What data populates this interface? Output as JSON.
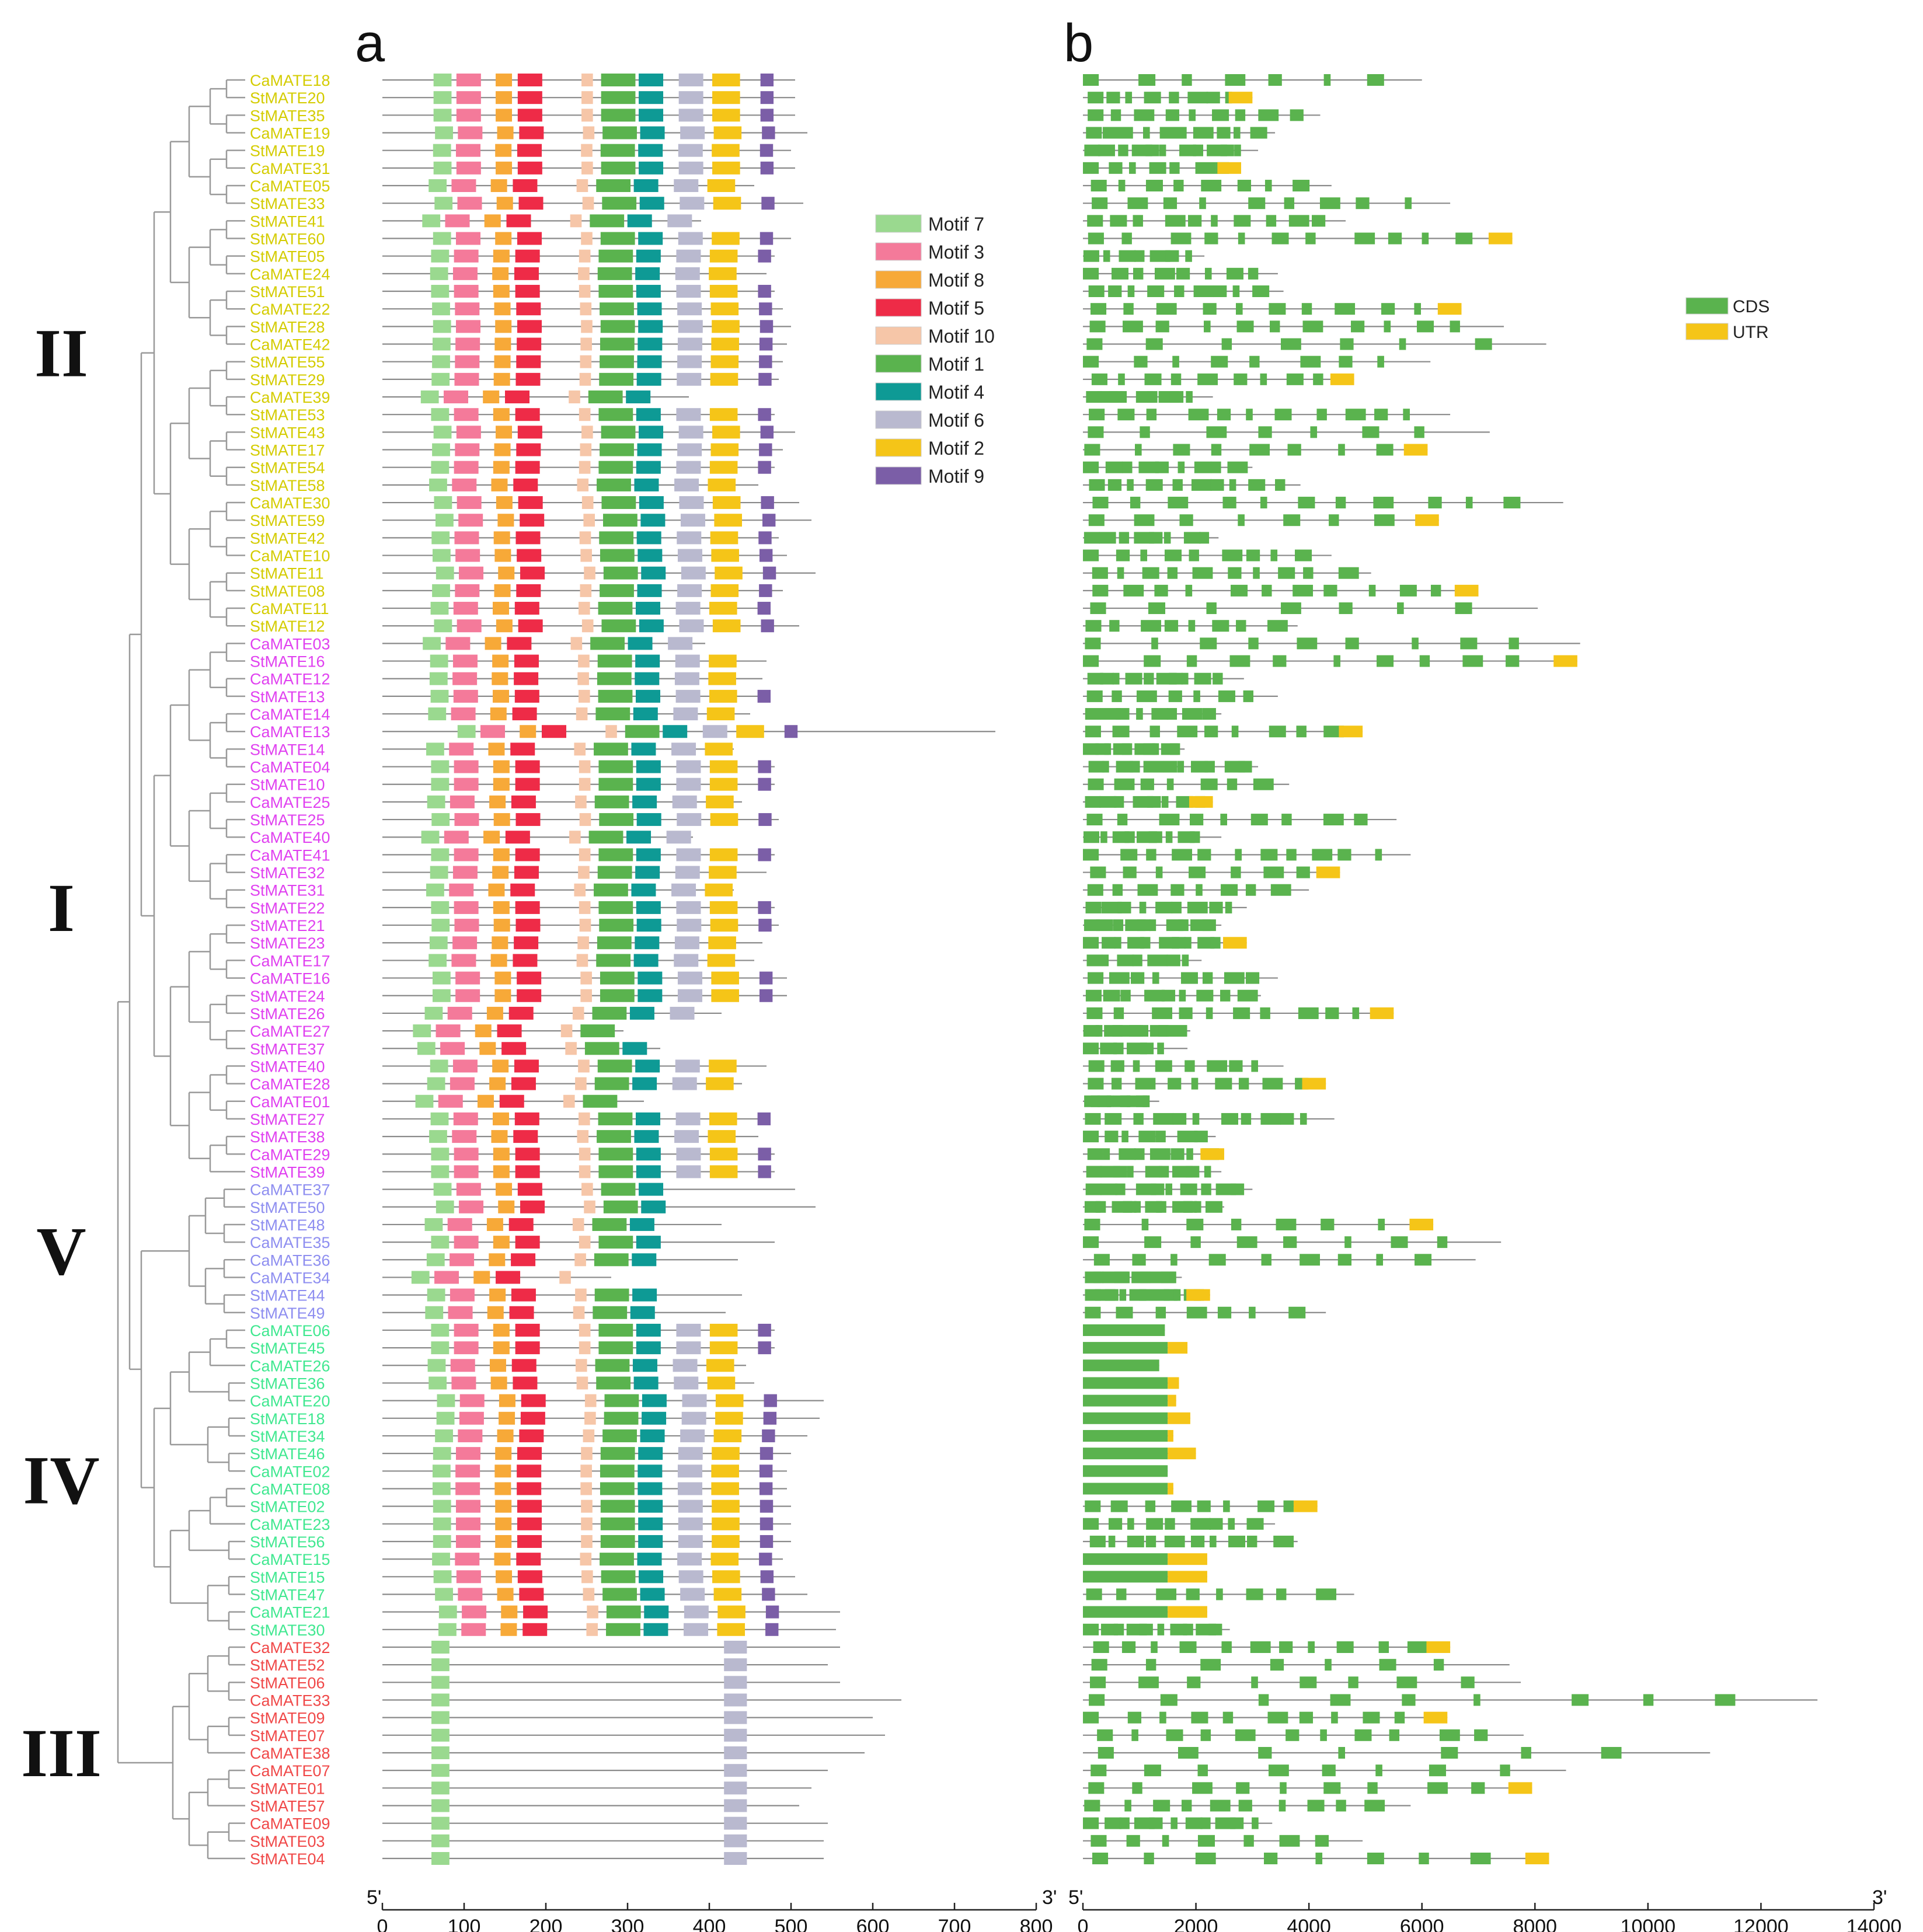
{
  "panels": {
    "a": "a",
    "b": "b"
  },
  "ends": {
    "five": "5'",
    "three": "3'"
  },
  "clades": [
    {
      "id": "II",
      "color": "#d4cc00"
    },
    {
      "id": "I",
      "color": "#e040f0"
    },
    {
      "id": "V",
      "color": "#8e8ef0"
    },
    {
      "id": "IV",
      "color": "#40e890"
    },
    {
      "id": "III",
      "color": "#f04848"
    }
  ],
  "motif_legend": [
    {
      "name": "Motif 7",
      "color": "#9ad98f"
    },
    {
      "name": "Motif 3",
      "color": "#f47a9a"
    },
    {
      "name": "Motif 8",
      "color": "#f7a938"
    },
    {
      "name": "Motif 5",
      "color": "#ee2b47"
    },
    {
      "name": "Motif 10",
      "color": "#f6c6a8"
    },
    {
      "name": "Motif 1",
      "color": "#5ab34e"
    },
    {
      "name": "Motif 4",
      "color": "#0e9a95"
    },
    {
      "name": "Motif 6",
      "color": "#b9b9cf"
    },
    {
      "name": "Motif 2",
      "color": "#f5c518"
    },
    {
      "name": "Motif 9",
      "color": "#7b5ea7"
    }
  ],
  "structure_legend": [
    {
      "name": "CDS",
      "color": "#5ab34e"
    },
    {
      "name": "UTR",
      "color": "#f5c518"
    }
  ],
  "motif_axis": {
    "ticks": [
      "0",
      "100",
      "200",
      "300",
      "400",
      "500",
      "600",
      "700",
      "800"
    ],
    "max": 800
  },
  "structure_axis": {
    "ticks": [
      "0",
      "2000",
      "4000",
      "6000",
      "8000",
      "10000",
      "12000",
      "14000"
    ],
    "max": 14000
  },
  "genes": [
    {
      "name": "CaMATE18",
      "clade": "II",
      "len": 505,
      "gene": 6000
    },
    {
      "name": "StMATE20",
      "clade": "II",
      "len": 505,
      "gene": 3000
    },
    {
      "name": "StMATE35",
      "clade": "II",
      "len": 505,
      "gene": 4200
    },
    {
      "name": "CaMATE19",
      "clade": "II",
      "len": 520,
      "gene": 3400
    },
    {
      "name": "StMATE19",
      "clade": "II",
      "len": 500,
      "gene": 3100
    },
    {
      "name": "CaMATE31",
      "clade": "II",
      "len": 505,
      "gene": 2800
    },
    {
      "name": "CaMATE05",
      "clade": "II",
      "len": 455,
      "gene": 4400
    },
    {
      "name": "StMATE33",
      "clade": "II",
      "len": 515,
      "gene": 6500
    },
    {
      "name": "StMATE41",
      "clade": "II",
      "len": 390,
      "gene": 4650
    },
    {
      "name": "StMATE60",
      "clade": "II",
      "len": 500,
      "gene": 7600
    },
    {
      "name": "StMATE05",
      "clade": "II",
      "len": 480,
      "gene": 2150
    },
    {
      "name": "CaMATE24",
      "clade": "II",
      "len": 470,
      "gene": 3450
    },
    {
      "name": "StMATE51",
      "clade": "II",
      "len": 480,
      "gene": 3550
    },
    {
      "name": "CaMATE22",
      "clade": "II",
      "len": 490,
      "gene": 6700
    },
    {
      "name": "StMATE28",
      "clade": "II",
      "len": 500,
      "gene": 7450
    },
    {
      "name": "CaMATE42",
      "clade": "II",
      "len": 495,
      "gene": 8200
    },
    {
      "name": "StMATE55",
      "clade": "II",
      "len": 490,
      "gene": 6150
    },
    {
      "name": "StMATE29",
      "clade": "II",
      "len": 485,
      "gene": 4800
    },
    {
      "name": "CaMATE39",
      "clade": "II",
      "len": 375,
      "gene": 2300
    },
    {
      "name": "StMATE53",
      "clade": "II",
      "len": 480,
      "gene": 6500
    },
    {
      "name": "StMATE43",
      "clade": "II",
      "len": 505,
      "gene": 7200
    },
    {
      "name": "StMATE17",
      "clade": "II",
      "len": 490,
      "gene": 6100
    },
    {
      "name": "StMATE54",
      "clade": "II",
      "len": 480,
      "gene": 3000
    },
    {
      "name": "StMATE58",
      "clade": "II",
      "len": 460,
      "gene": 3850
    },
    {
      "name": "CaMATE30",
      "clade": "II",
      "len": 510,
      "gene": 8500
    },
    {
      "name": "StMATE59",
      "clade": "II",
      "len": 525,
      "gene": 6300
    },
    {
      "name": "StMATE42",
      "clade": "II",
      "len": 485,
      "gene": 2400
    },
    {
      "name": "CaMATE10",
      "clade": "II",
      "len": 495,
      "gene": 4400
    },
    {
      "name": "StMATE11",
      "clade": "II",
      "len": 530,
      "gene": 5100
    },
    {
      "name": "StMATE08",
      "clade": "II",
      "len": 490,
      "gene": 7000
    },
    {
      "name": "CaMATE11",
      "clade": "II",
      "len": 475,
      "gene": 8050
    },
    {
      "name": "StMATE12",
      "clade": "II",
      "len": 510,
      "gene": 3800
    },
    {
      "name": "CaMATE03",
      "clade": "I",
      "len": 395,
      "gene": 8800
    },
    {
      "name": "StMATE16",
      "clade": "I",
      "len": 470,
      "gene": 8750
    },
    {
      "name": "CaMATE12",
      "clade": "I",
      "len": 465,
      "gene": 2850
    },
    {
      "name": "StMATE13",
      "clade": "I",
      "len": 475,
      "gene": 3450
    },
    {
      "name": "CaMATE14",
      "clade": "I",
      "len": 450,
      "gene": 2450
    },
    {
      "name": "CaMATE13",
      "clade": "I",
      "len": 750,
      "gene": 4950
    },
    {
      "name": "StMATE14",
      "clade": "I",
      "len": 430,
      "gene": 1800
    },
    {
      "name": "CaMATE04",
      "clade": "I",
      "len": 480,
      "gene": 3100
    },
    {
      "name": "StMATE10",
      "clade": "I",
      "len": 480,
      "gene": 3650
    },
    {
      "name": "CaMATE25",
      "clade": "I",
      "len": 440,
      "gene": 2300
    },
    {
      "name": "StMATE25",
      "clade": "I",
      "len": 485,
      "gene": 5550
    },
    {
      "name": "CaMATE40",
      "clade": "I",
      "len": 380,
      "gene": 2450
    },
    {
      "name": "CaMATE41",
      "clade": "I",
      "len": 480,
      "gene": 5800
    },
    {
      "name": "StMATE32",
      "clade": "I",
      "len": 470,
      "gene": 4550
    },
    {
      "name": "StMATE31",
      "clade": "I",
      "len": 430,
      "gene": 4000
    },
    {
      "name": "StMATE22",
      "clade": "I",
      "len": 480,
      "gene": 2900
    },
    {
      "name": "StMATE21",
      "clade": "I",
      "len": 485,
      "gene": 2450
    },
    {
      "name": "StMATE23",
      "clade": "I",
      "len": 465,
      "gene": 2900
    },
    {
      "name": "CaMATE17",
      "clade": "I",
      "len": 455,
      "gene": 2100
    },
    {
      "name": "CaMATE16",
      "clade": "I",
      "len": 495,
      "gene": 3450
    },
    {
      "name": "StMATE24",
      "clade": "I",
      "len": 495,
      "gene": 3150
    },
    {
      "name": "StMATE26",
      "clade": "I",
      "len": 415,
      "gene": 5500
    },
    {
      "name": "CaMATE27",
      "clade": "I",
      "len": 295,
      "gene": 1900
    },
    {
      "name": "StMATE37",
      "clade": "I",
      "len": 340,
      "gene": 1850
    },
    {
      "name": "StMATE40",
      "clade": "I",
      "len": 470,
      "gene": 3550
    },
    {
      "name": "CaMATE28",
      "clade": "I",
      "len": 440,
      "gene": 4300
    },
    {
      "name": "CaMATE01",
      "clade": "I",
      "len": 320,
      "gene": 1350
    },
    {
      "name": "StMATE27",
      "clade": "I",
      "len": 475,
      "gene": 4450
    },
    {
      "name": "StMATE38",
      "clade": "I",
      "len": 460,
      "gene": 2350
    },
    {
      "name": "CaMATE29",
      "clade": "I",
      "len": 480,
      "gene": 2500
    },
    {
      "name": "StMATE39",
      "clade": "I",
      "len": 480,
      "gene": 2450
    },
    {
      "name": "CaMATE37",
      "clade": "V",
      "len": 505,
      "gene": 3000
    },
    {
      "name": "StMATE50",
      "clade": "V",
      "len": 530,
      "gene": 2500
    },
    {
      "name": "StMATE48",
      "clade": "V",
      "len": 415,
      "gene": 6200
    },
    {
      "name": "CaMATE35",
      "clade": "V",
      "len": 480,
      "gene": 7400
    },
    {
      "name": "CaMATE36",
      "clade": "V",
      "len": 435,
      "gene": 6950
    },
    {
      "name": "CaMATE34",
      "clade": "V",
      "len": 280,
      "gene": 1750
    },
    {
      "name": "StMATE44",
      "clade": "V",
      "len": 440,
      "gene": 2250
    },
    {
      "name": "StMATE49",
      "clade": "V",
      "len": 420,
      "gene": 4300
    },
    {
      "name": "CaMATE06",
      "clade": "IV",
      "len": 480,
      "gene": 1450
    },
    {
      "name": "StMATE45",
      "clade": "IV",
      "len": 480,
      "gene": 1850
    },
    {
      "name": "CaMATE26",
      "clade": "IV",
      "len": 445,
      "gene": 1350
    },
    {
      "name": "StMATE36",
      "clade": "IV",
      "len": 455,
      "gene": 1700
    },
    {
      "name": "CaMATE20",
      "clade": "IV",
      "len": 540,
      "gene": 1650
    },
    {
      "name": "StMATE18",
      "clade": "IV",
      "len": 535,
      "gene": 1900
    },
    {
      "name": "StMATE34",
      "clade": "IV",
      "len": 520,
      "gene": 1600
    },
    {
      "name": "StMATE46",
      "clade": "IV",
      "len": 500,
      "gene": 2000
    },
    {
      "name": "CaMATE02",
      "clade": "IV",
      "len": 495,
      "gene": 1500
    },
    {
      "name": "CaMATE08",
      "clade": "IV",
      "len": 495,
      "gene": 1600
    },
    {
      "name": "StMATE02",
      "clade": "IV",
      "len": 500,
      "gene": 4150
    },
    {
      "name": "CaMATE23",
      "clade": "IV",
      "len": 500,
      "gene": 3400
    },
    {
      "name": "StMATE56",
      "clade": "IV",
      "len": 500,
      "gene": 3800
    },
    {
      "name": "CaMATE15",
      "clade": "IV",
      "len": 490,
      "gene": 2200
    },
    {
      "name": "StMATE15",
      "clade": "IV",
      "len": 505,
      "gene": 2200
    },
    {
      "name": "StMATE47",
      "clade": "IV",
      "len": 520,
      "gene": 4800
    },
    {
      "name": "CaMATE21",
      "clade": "IV",
      "len": 560,
      "gene": 2200
    },
    {
      "name": "StMATE30",
      "clade": "IV",
      "len": 555,
      "gene": 2600
    },
    {
      "name": "CaMATE32",
      "clade": "III",
      "len": 560,
      "gene": 6500
    },
    {
      "name": "StMATE52",
      "clade": "III",
      "len": 545,
      "gene": 7550
    },
    {
      "name": "StMATE06",
      "clade": "III",
      "len": 560,
      "gene": 7750
    },
    {
      "name": "CaMATE33",
      "clade": "III",
      "len": 635,
      "gene": 13000
    },
    {
      "name": "StMATE09",
      "clade": "III",
      "len": 600,
      "gene": 6450
    },
    {
      "name": "StMATE07",
      "clade": "III",
      "len": 615,
      "gene": 7800
    },
    {
      "name": "CaMATE38",
      "clade": "III",
      "len": 590,
      "gene": 11100
    },
    {
      "name": "CaMATE07",
      "clade": "III",
      "len": 545,
      "gene": 8550
    },
    {
      "name": "StMATE01",
      "clade": "III",
      "len": 525,
      "gene": 7950
    },
    {
      "name": "StMATE57",
      "clade": "III",
      "len": 510,
      "gene": 5800
    },
    {
      "name": "CaMATE09",
      "clade": "III",
      "len": 545,
      "gene": 3350
    },
    {
      "name": "StMATE03",
      "clade": "III",
      "len": 540,
      "gene": 4950
    },
    {
      "name": "StMATE04",
      "clade": "III",
      "len": 540,
      "gene": 8250
    }
  ]
}
